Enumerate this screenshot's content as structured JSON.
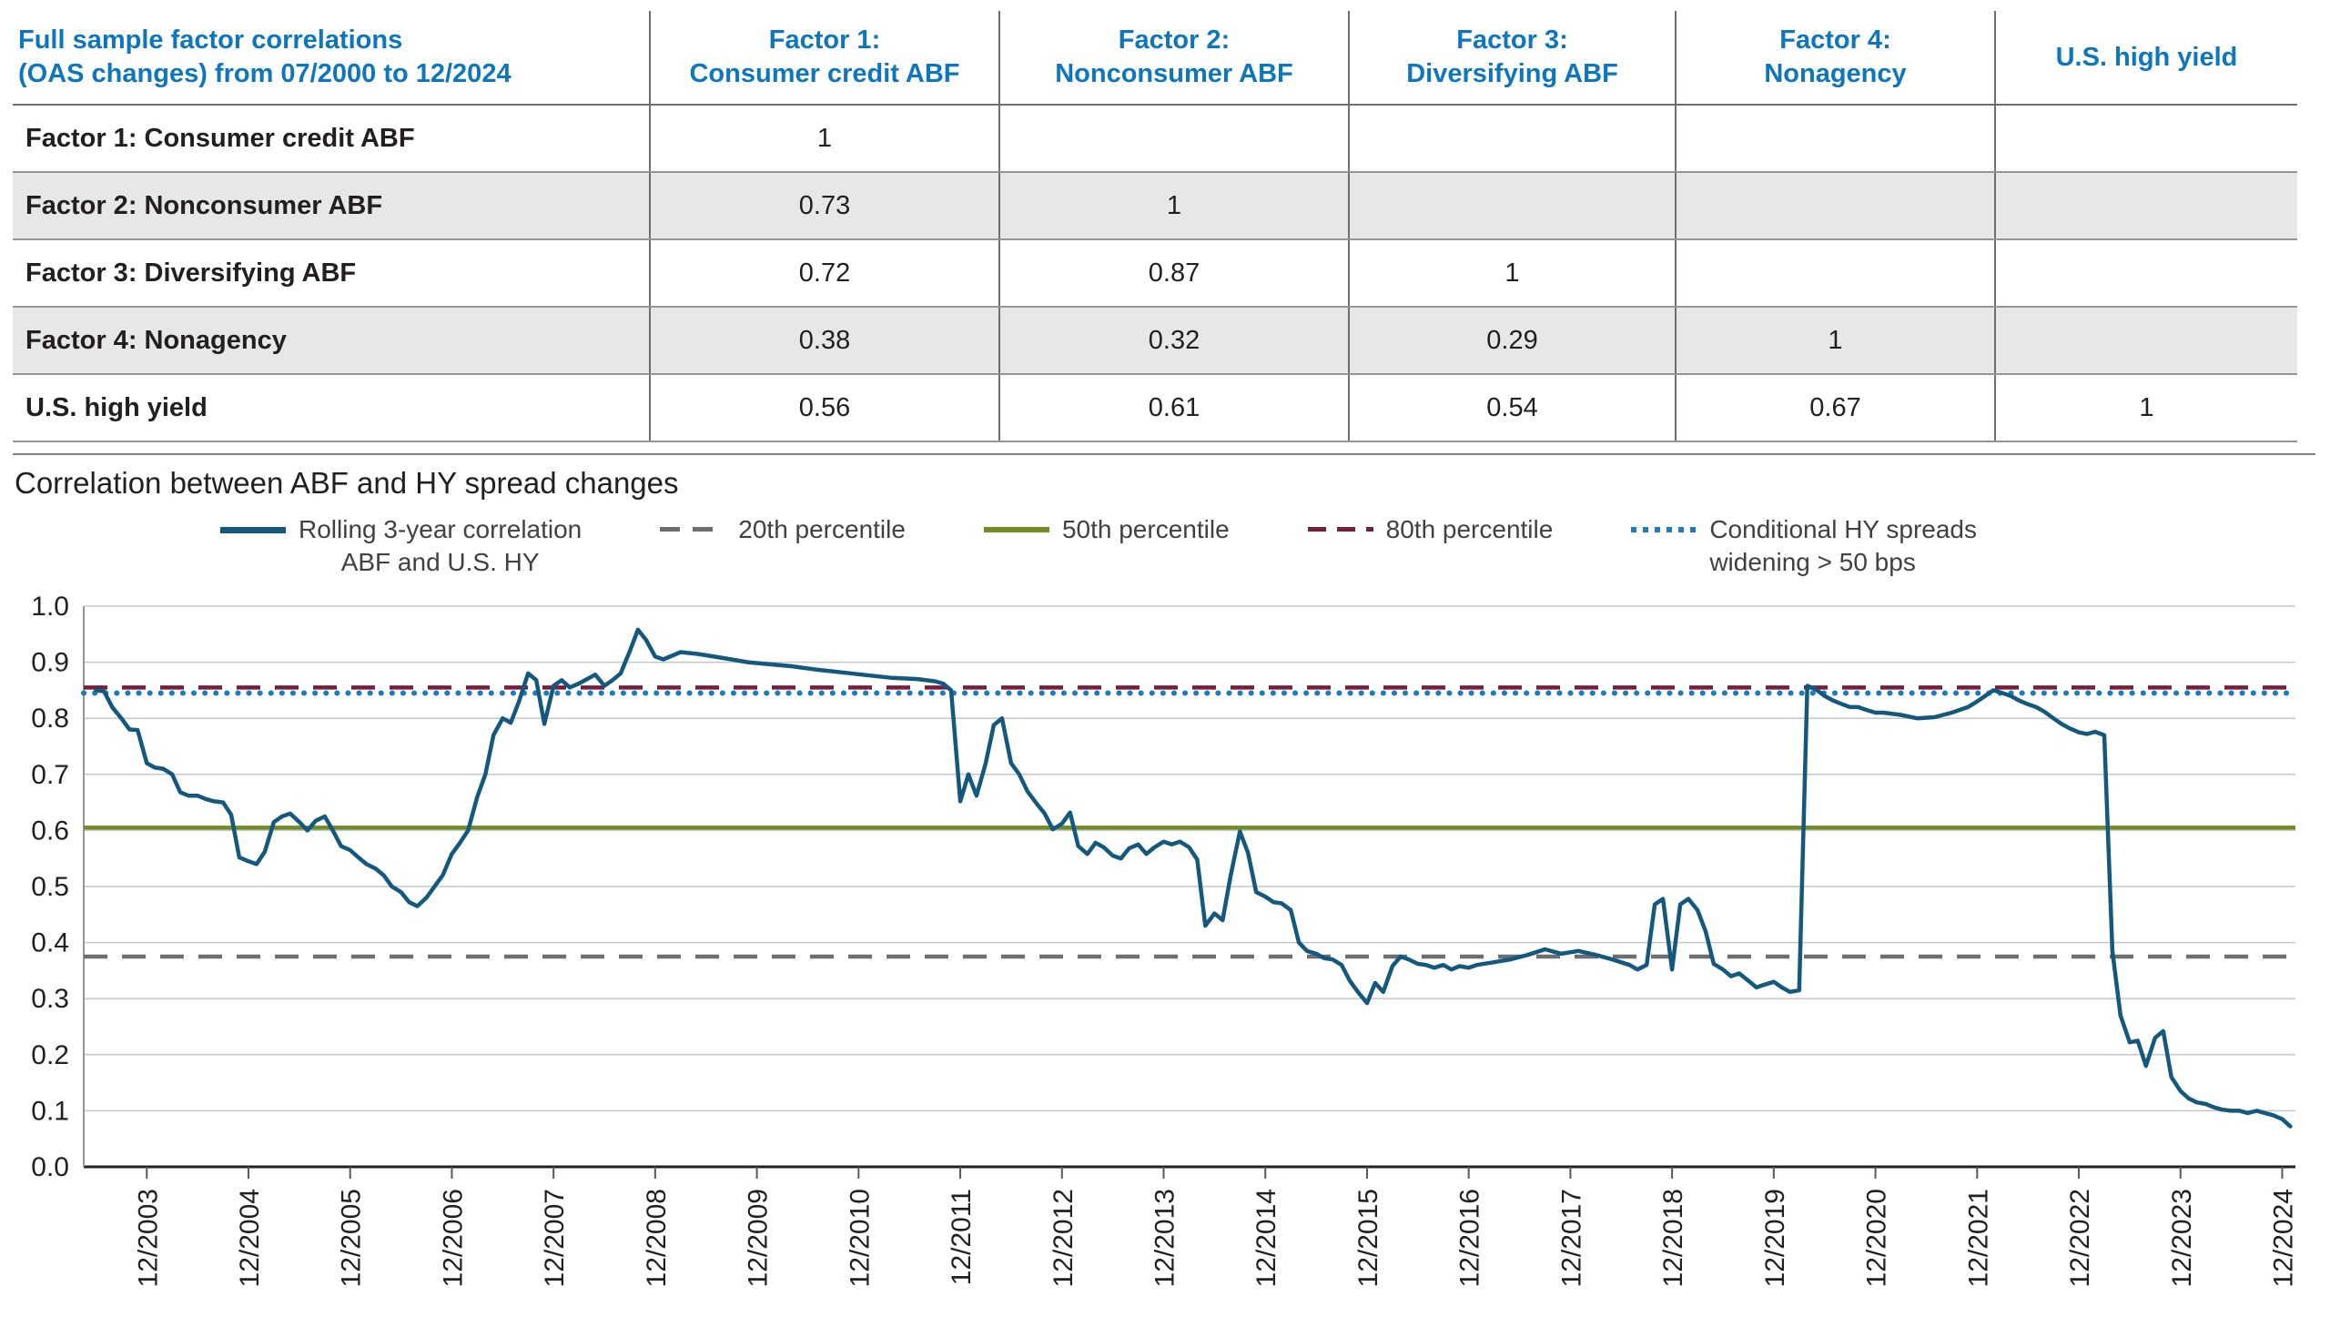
{
  "table": {
    "title_line1": "Full sample factor correlations",
    "title_line2": "(OAS changes) from 07/2000 to 12/2024",
    "columns": [
      {
        "line1": "Factor 1:",
        "line2": "Consumer credit ABF"
      },
      {
        "line1": "Factor 2:",
        "line2": "Nonconsumer ABF"
      },
      {
        "line1": "Factor 3:",
        "line2": "Diversifying ABF"
      },
      {
        "line1": "Factor 4:",
        "line2": "Nonagency"
      },
      {
        "line1": "U.S. high yield",
        "line2": ""
      }
    ],
    "rows": [
      {
        "label": "Factor 1: Consumer credit ABF",
        "values": [
          "1",
          "",
          "",
          "",
          ""
        ]
      },
      {
        "label": "Factor 2: Nonconsumer ABF",
        "values": [
          "0.73",
          "1",
          "",
          "",
          ""
        ]
      },
      {
        "label": "Factor 3: Diversifying ABF",
        "values": [
          "0.72",
          "0.87",
          "1",
          "",
          ""
        ]
      },
      {
        "label": "Factor 4: Nonagency",
        "values": [
          "0.38",
          "0.32",
          "0.29",
          "1",
          ""
        ]
      },
      {
        "label": "U.S. high yield",
        "values": [
          "0.56",
          "0.61",
          "0.54",
          "0.67",
          "1"
        ]
      }
    ],
    "accent_color": "#0e76bc"
  },
  "chart": {
    "title": "Correlation between ABF and HY spread changes",
    "legend": [
      {
        "label": "Rolling 3-year correlation",
        "sublabel": "ABF and U.S. HY"
      },
      {
        "label": "20th percentile",
        "sublabel": ""
      },
      {
        "label": "50th percentile",
        "sublabel": ""
      },
      {
        "label": "80th percentile",
        "sublabel": ""
      },
      {
        "label": "Conditional HY spreads",
        "sublabel": "widening > 50 bps"
      }
    ]
  },
  "chart_data": {
    "type": "line",
    "title": "Correlation between ABF and HY spread changes",
    "xlabel": "",
    "ylabel": "",
    "xlim": [
      2003.3,
      2025.05
    ],
    "ylim": [
      0.0,
      1.0
    ],
    "y_tick_step": 0.1,
    "y_ticks": [
      "0.0",
      "0.1",
      "0.2",
      "0.3",
      "0.4",
      "0.5",
      "0.6",
      "0.7",
      "0.8",
      "0.9",
      "1.0"
    ],
    "grid": "horizontal",
    "legend_position": "top",
    "x_ticks": [
      {
        "label": "12/2003",
        "x": 2003.92
      },
      {
        "label": "12/2004",
        "x": 2004.92
      },
      {
        "label": "12/2005",
        "x": 2005.92
      },
      {
        "label": "12/2006",
        "x": 2006.92
      },
      {
        "label": "12/2007",
        "x": 2007.92
      },
      {
        "label": "12/2008",
        "x": 2008.92
      },
      {
        "label": "12/2009",
        "x": 2009.92
      },
      {
        "label": "12/2010",
        "x": 2010.92
      },
      {
        "label": "12/2011",
        "x": 2011.92
      },
      {
        "label": "12/2012",
        "x": 2012.92
      },
      {
        "label": "12/2013",
        "x": 2013.92
      },
      {
        "label": "12/2014",
        "x": 2014.92
      },
      {
        "label": "12/2015",
        "x": 2015.92
      },
      {
        "label": "12/2016",
        "x": 2016.92
      },
      {
        "label": "12/2017",
        "x": 2017.92
      },
      {
        "label": "12/2018",
        "x": 2018.92
      },
      {
        "label": "12/2019",
        "x": 2019.92
      },
      {
        "label": "12/2020",
        "x": 2020.92
      },
      {
        "label": "12/2021",
        "x": 2021.92
      },
      {
        "label": "12/2022",
        "x": 2022.92
      },
      {
        "label": "12/2023",
        "x": 2023.92
      },
      {
        "label": "12/2024",
        "x": 2024.92
      }
    ],
    "reference_lines": [
      {
        "name": "20th percentile",
        "value": 0.375,
        "color": "#6d6e71",
        "style": "dashed"
      },
      {
        "name": "50th percentile",
        "value": 0.605,
        "color": "#6f8c23",
        "style": "solid"
      },
      {
        "name": "Conditional HY spreads widening > 50 bps",
        "value": 0.845,
        "color": "#1a7bbf",
        "style": "dotted"
      },
      {
        "name": "80th percentile",
        "value": 0.855,
        "color": "#7a1d3d",
        "style": "dashed"
      }
    ],
    "series": [
      {
        "name": "Rolling 3-year correlation ABF and U.S. HY",
        "color": "#14597d",
        "points": [
          [
            2003.42,
            0.85
          ],
          [
            2003.5,
            0.848
          ],
          [
            2003.58,
            0.82
          ],
          [
            2003.67,
            0.8
          ],
          [
            2003.75,
            0.78
          ],
          [
            2003.83,
            0.779
          ],
          [
            2003.92,
            0.72
          ],
          [
            2004.0,
            0.712
          ],
          [
            2004.08,
            0.71
          ],
          [
            2004.17,
            0.7
          ],
          [
            2004.25,
            0.668
          ],
          [
            2004.33,
            0.662
          ],
          [
            2004.42,
            0.662
          ],
          [
            2004.5,
            0.656
          ],
          [
            2004.58,
            0.652
          ],
          [
            2004.67,
            0.65
          ],
          [
            2004.75,
            0.628
          ],
          [
            2004.83,
            0.552
          ],
          [
            2004.92,
            0.545
          ],
          [
            2005.0,
            0.54
          ],
          [
            2005.08,
            0.562
          ],
          [
            2005.17,
            0.615
          ],
          [
            2005.25,
            0.625
          ],
          [
            2005.33,
            0.63
          ],
          [
            2005.42,
            0.615
          ],
          [
            2005.5,
            0.6
          ],
          [
            2005.58,
            0.617
          ],
          [
            2005.67,
            0.625
          ],
          [
            2005.75,
            0.6
          ],
          [
            2005.83,
            0.572
          ],
          [
            2005.92,
            0.565
          ],
          [
            2006.0,
            0.552
          ],
          [
            2006.08,
            0.54
          ],
          [
            2006.17,
            0.532
          ],
          [
            2006.25,
            0.52
          ],
          [
            2006.33,
            0.5
          ],
          [
            2006.42,
            0.49
          ],
          [
            2006.5,
            0.472
          ],
          [
            2006.58,
            0.465
          ],
          [
            2006.67,
            0.48
          ],
          [
            2006.75,
            0.5
          ],
          [
            2006.83,
            0.52
          ],
          [
            2006.92,
            0.558
          ],
          [
            2007.0,
            0.578
          ],
          [
            2007.08,
            0.6
          ],
          [
            2007.17,
            0.66
          ],
          [
            2007.25,
            0.7
          ],
          [
            2007.33,
            0.77
          ],
          [
            2007.42,
            0.8
          ],
          [
            2007.5,
            0.792
          ],
          [
            2007.58,
            0.83
          ],
          [
            2007.67,
            0.88
          ],
          [
            2007.75,
            0.868
          ],
          [
            2007.83,
            0.79
          ],
          [
            2007.92,
            0.858
          ],
          [
            2008.0,
            0.868
          ],
          [
            2008.08,
            0.855
          ],
          [
            2008.17,
            0.862
          ],
          [
            2008.25,
            0.87
          ],
          [
            2008.33,
            0.878
          ],
          [
            2008.42,
            0.858
          ],
          [
            2008.5,
            0.868
          ],
          [
            2008.58,
            0.88
          ],
          [
            2008.67,
            0.92
          ],
          [
            2008.75,
            0.958
          ],
          [
            2008.83,
            0.94
          ],
          [
            2008.92,
            0.91
          ],
          [
            2009.0,
            0.905
          ],
          [
            2009.17,
            0.918
          ],
          [
            2009.33,
            0.915
          ],
          [
            2009.5,
            0.91
          ],
          [
            2009.67,
            0.905
          ],
          [
            2009.83,
            0.9
          ],
          [
            2010.0,
            0.897
          ],
          [
            2010.25,
            0.893
          ],
          [
            2010.5,
            0.887
          ],
          [
            2010.75,
            0.882
          ],
          [
            2011.0,
            0.877
          ],
          [
            2011.25,
            0.872
          ],
          [
            2011.5,
            0.87
          ],
          [
            2011.67,
            0.866
          ],
          [
            2011.75,
            0.862
          ],
          [
            2011.83,
            0.85
          ],
          [
            2011.92,
            0.652
          ],
          [
            2012.0,
            0.7
          ],
          [
            2012.08,
            0.662
          ],
          [
            2012.17,
            0.72
          ],
          [
            2012.25,
            0.788
          ],
          [
            2012.33,
            0.8
          ],
          [
            2012.42,
            0.72
          ],
          [
            2012.5,
            0.7
          ],
          [
            2012.58,
            0.67
          ],
          [
            2012.67,
            0.648
          ],
          [
            2012.75,
            0.63
          ],
          [
            2012.83,
            0.602
          ],
          [
            2012.92,
            0.612
          ],
          [
            2013.0,
            0.632
          ],
          [
            2013.08,
            0.572
          ],
          [
            2013.17,
            0.558
          ],
          [
            2013.25,
            0.578
          ],
          [
            2013.33,
            0.57
          ],
          [
            2013.42,
            0.555
          ],
          [
            2013.5,
            0.55
          ],
          [
            2013.58,
            0.568
          ],
          [
            2013.67,
            0.575
          ],
          [
            2013.75,
            0.558
          ],
          [
            2013.83,
            0.57
          ],
          [
            2013.92,
            0.58
          ],
          [
            2014.0,
            0.575
          ],
          [
            2014.08,
            0.58
          ],
          [
            2014.17,
            0.57
          ],
          [
            2014.25,
            0.548
          ],
          [
            2014.33,
            0.43
          ],
          [
            2014.42,
            0.452
          ],
          [
            2014.5,
            0.44
          ],
          [
            2014.58,
            0.52
          ],
          [
            2014.67,
            0.598
          ],
          [
            2014.75,
            0.56
          ],
          [
            2014.83,
            0.49
          ],
          [
            2014.92,
            0.482
          ],
          [
            2015.0,
            0.472
          ],
          [
            2015.08,
            0.47
          ],
          [
            2015.17,
            0.458
          ],
          [
            2015.25,
            0.4
          ],
          [
            2015.33,
            0.385
          ],
          [
            2015.42,
            0.38
          ],
          [
            2015.5,
            0.372
          ],
          [
            2015.58,
            0.37
          ],
          [
            2015.67,
            0.36
          ],
          [
            2015.75,
            0.332
          ],
          [
            2015.83,
            0.312
          ],
          [
            2015.92,
            0.292
          ],
          [
            2016.0,
            0.328
          ],
          [
            2016.08,
            0.312
          ],
          [
            2016.17,
            0.358
          ],
          [
            2016.25,
            0.375
          ],
          [
            2016.33,
            0.37
          ],
          [
            2016.42,
            0.362
          ],
          [
            2016.5,
            0.36
          ],
          [
            2016.58,
            0.355
          ],
          [
            2016.67,
            0.36
          ],
          [
            2016.75,
            0.352
          ],
          [
            2016.83,
            0.358
          ],
          [
            2016.92,
            0.355
          ],
          [
            2017.0,
            0.36
          ],
          [
            2017.17,
            0.365
          ],
          [
            2017.33,
            0.37
          ],
          [
            2017.5,
            0.378
          ],
          [
            2017.67,
            0.388
          ],
          [
            2017.83,
            0.38
          ],
          [
            2018.0,
            0.385
          ],
          [
            2018.17,
            0.378
          ],
          [
            2018.33,
            0.37
          ],
          [
            2018.5,
            0.36
          ],
          [
            2018.58,
            0.352
          ],
          [
            2018.67,
            0.36
          ],
          [
            2018.75,
            0.468
          ],
          [
            2018.83,
            0.478
          ],
          [
            2018.92,
            0.352
          ],
          [
            2019.0,
            0.468
          ],
          [
            2019.08,
            0.478
          ],
          [
            2019.17,
            0.458
          ],
          [
            2019.25,
            0.42
          ],
          [
            2019.33,
            0.362
          ],
          [
            2019.42,
            0.352
          ],
          [
            2019.5,
            0.34
          ],
          [
            2019.58,
            0.345
          ],
          [
            2019.67,
            0.332
          ],
          [
            2019.75,
            0.32
          ],
          [
            2019.83,
            0.325
          ],
          [
            2019.92,
            0.33
          ],
          [
            2020.0,
            0.32
          ],
          [
            2020.08,
            0.312
          ],
          [
            2020.17,
            0.315
          ],
          [
            2020.25,
            0.858
          ],
          [
            2020.33,
            0.852
          ],
          [
            2020.42,
            0.84
          ],
          [
            2020.5,
            0.832
          ],
          [
            2020.58,
            0.826
          ],
          [
            2020.67,
            0.82
          ],
          [
            2020.75,
            0.82
          ],
          [
            2020.83,
            0.815
          ],
          [
            2020.92,
            0.81
          ],
          [
            2021.0,
            0.81
          ],
          [
            2021.17,
            0.806
          ],
          [
            2021.33,
            0.8
          ],
          [
            2021.5,
            0.802
          ],
          [
            2021.67,
            0.81
          ],
          [
            2021.83,
            0.82
          ],
          [
            2021.92,
            0.83
          ],
          [
            2022.0,
            0.84
          ],
          [
            2022.08,
            0.85
          ],
          [
            2022.17,
            0.845
          ],
          [
            2022.25,
            0.84
          ],
          [
            2022.33,
            0.832
          ],
          [
            2022.42,
            0.825
          ],
          [
            2022.5,
            0.82
          ],
          [
            2022.58,
            0.812
          ],
          [
            2022.67,
            0.8
          ],
          [
            2022.75,
            0.79
          ],
          [
            2022.83,
            0.782
          ],
          [
            2022.92,
            0.775
          ],
          [
            2023.0,
            0.772
          ],
          [
            2023.08,
            0.776
          ],
          [
            2023.17,
            0.77
          ],
          [
            2023.25,
            0.385
          ],
          [
            2023.33,
            0.27
          ],
          [
            2023.42,
            0.222
          ],
          [
            2023.5,
            0.225
          ],
          [
            2023.58,
            0.18
          ],
          [
            2023.67,
            0.23
          ],
          [
            2023.75,
            0.242
          ],
          [
            2023.83,
            0.16
          ],
          [
            2023.92,
            0.135
          ],
          [
            2024.0,
            0.122
          ],
          [
            2024.08,
            0.115
          ],
          [
            2024.17,
            0.112
          ],
          [
            2024.25,
            0.106
          ],
          [
            2024.33,
            0.102
          ],
          [
            2024.42,
            0.1
          ],
          [
            2024.5,
            0.1
          ],
          [
            2024.58,
            0.096
          ],
          [
            2024.67,
            0.1
          ],
          [
            2024.75,
            0.096
          ],
          [
            2024.83,
            0.092
          ],
          [
            2024.92,
            0.085
          ],
          [
            2025.0,
            0.072
          ]
        ]
      }
    ]
  }
}
